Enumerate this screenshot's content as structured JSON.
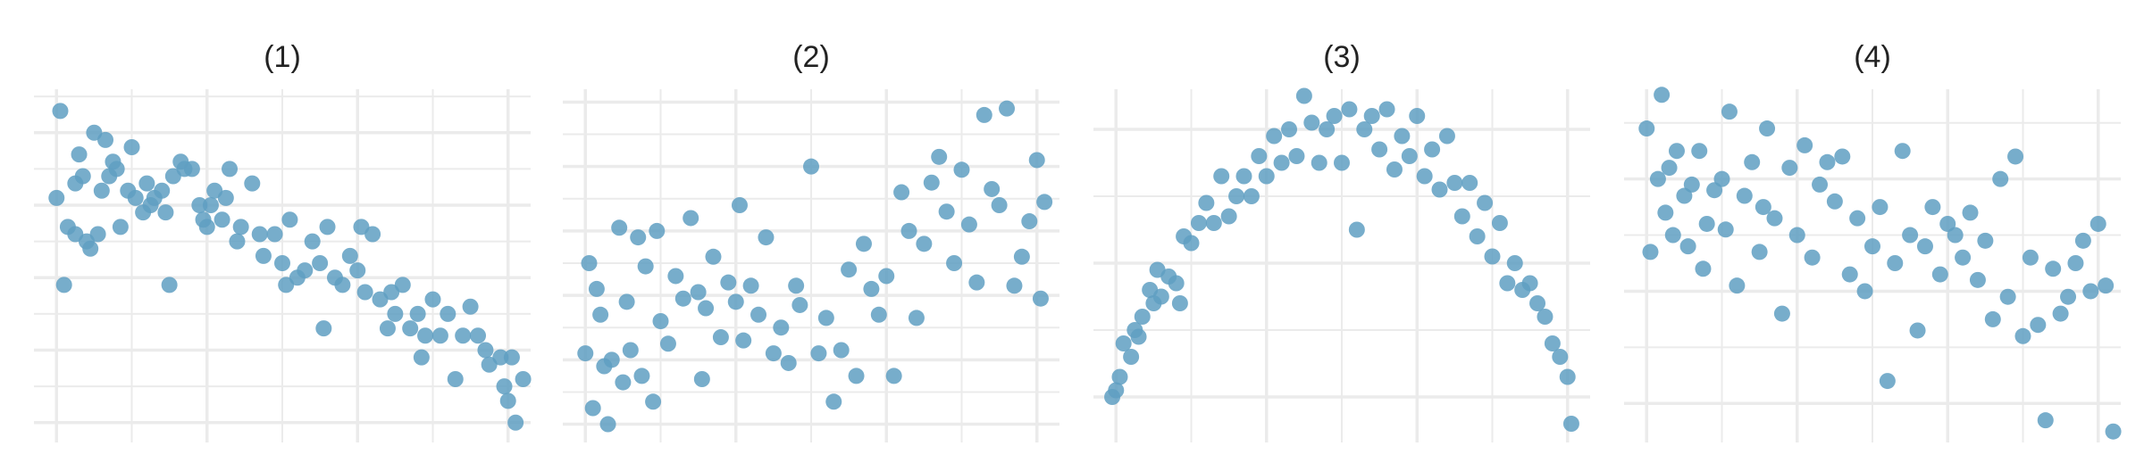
{
  "chart_data": [
    {
      "type": "scatter",
      "title": "(1)",
      "color": "#5f9fc2",
      "grid": true,
      "xlim": [
        -0.3,
        6.3
      ],
      "ylim": [
        -0.2,
        4.6
      ],
      "xticks": [
        0,
        1,
        2,
        3,
        4,
        5,
        6
      ],
      "yticks": [
        0,
        0.5,
        1,
        1.5,
        2,
        2.5,
        3,
        3.5,
        4,
        4.5
      ],
      "x": [
        0,
        0.05,
        0.1,
        0.15,
        0.25,
        0.25,
        0.3,
        0.35,
        0.4,
        0.45,
        0.5,
        0.55,
        0.6,
        0.65,
        0.7,
        0.75,
        0.8,
        0.85,
        0.95,
        1.0,
        1.05,
        1.15,
        1.2,
        1.25,
        1.3,
        1.4,
        1.45,
        1.5,
        1.55,
        1.65,
        1.7,
        1.8,
        1.9,
        1.95,
        2.0,
        2.05,
        2.1,
        2.2,
        2.25,
        2.3,
        2.4,
        2.45,
        2.6,
        2.7,
        2.75,
        2.9,
        3.0,
        3.05,
        3.1,
        3.2,
        3.3,
        3.4,
        3.5,
        3.55,
        3.6,
        3.7,
        3.8,
        3.9,
        4.0,
        4.05,
        4.1,
        4.2,
        4.3,
        4.4,
        4.45,
        4.5,
        4.6,
        4.7,
        4.8,
        4.85,
        4.9,
        5.0,
        5.1,
        5.2,
        5.3,
        5.4,
        5.5,
        5.6,
        5.7,
        5.75,
        5.9,
        5.95,
        6.0,
        6.05,
        6.1,
        6.2
      ],
      "values": [
        3.1,
        4.3,
        1.9,
        2.7,
        2.6,
        3.3,
        3.7,
        3.4,
        2.5,
        2.4,
        4.0,
        2.6,
        3.2,
        3.9,
        3.4,
        3.6,
        3.5,
        2.7,
        3.2,
        3.8,
        3.1,
        2.9,
        3.3,
        3.0,
        3.1,
        3.2,
        2.9,
        1.9,
        3.4,
        3.6,
        3.5,
        3.5,
        3.0,
        2.8,
        2.7,
        3.0,
        3.2,
        2.8,
        3.1,
        3.5,
        2.5,
        2.7,
        3.3,
        2.6,
        2.3,
        2.6,
        2.2,
        1.9,
        2.8,
        2.0,
        2.1,
        2.5,
        2.2,
        1.3,
        2.7,
        2.0,
        1.9,
        2.3,
        2.1,
        2.7,
        1.8,
        2.6,
        1.7,
        1.3,
        1.8,
        1.5,
        1.9,
        1.3,
        1.5,
        0.9,
        1.2,
        1.7,
        1.2,
        1.5,
        0.6,
        1.2,
        1.6,
        1.2,
        1.0,
        0.8,
        0.9,
        0.5,
        0.3,
        0.9,
        0.0,
        0.6
      ]
    },
    {
      "type": "scatter",
      "title": "(2)",
      "color": "#5f9fc2",
      "grid": true,
      "xlim": [
        -0.3,
        6.3
      ],
      "ylim": [
        -0.4,
        10.4
      ],
      "xticks": [
        0,
        1,
        2,
        3,
        4,
        5,
        6
      ],
      "yticks": [
        0,
        1,
        2,
        3,
        4,
        5,
        6,
        7,
        8,
        9,
        10
      ],
      "x": [
        0,
        0.05,
        0.1,
        0.15,
        0.2,
        0.25,
        0.3,
        0.35,
        0.45,
        0.5,
        0.55,
        0.6,
        0.7,
        0.75,
        0.8,
        0.9,
        0.95,
        1.0,
        1.1,
        1.2,
        1.3,
        1.4,
        1.5,
        1.55,
        1.6,
        1.7,
        1.8,
        1.9,
        2.0,
        2.05,
        2.1,
        2.2,
        2.3,
        2.4,
        2.5,
        2.6,
        2.7,
        2.8,
        2.85,
        3.0,
        3.1,
        3.2,
        3.3,
        3.4,
        3.5,
        3.6,
        3.7,
        3.8,
        3.9,
        4.0,
        4.1,
        4.2,
        4.3,
        4.4,
        4.5,
        4.6,
        4.7,
        4.8,
        4.9,
        5.0,
        5.1,
        5.2,
        5.3,
        5.4,
        5.5,
        5.6,
        5.7,
        5.8,
        5.9,
        6.0,
        6.05,
        6.1
      ],
      "values": [
        2.2,
        5.0,
        0.5,
        4.2,
        3.4,
        1.8,
        0.0,
        2.0,
        6.1,
        1.3,
        3.8,
        2.3,
        5.8,
        1.5,
        4.9,
        0.7,
        6.0,
        3.2,
        2.5,
        4.6,
        3.9,
        6.4,
        4.1,
        1.4,
        3.6,
        5.2,
        2.7,
        4.4,
        3.8,
        6.8,
        2.6,
        4.3,
        3.4,
        5.8,
        2.2,
        3.0,
        1.9,
        4.3,
        3.7,
        8.0,
        2.2,
        3.3,
        0.7,
        2.3,
        4.8,
        1.5,
        5.6,
        4.2,
        3.4,
        4.6,
        1.5,
        7.2,
        6.0,
        3.3,
        5.6,
        7.5,
        8.3,
        6.6,
        5.0,
        7.9,
        6.2,
        4.4,
        9.6,
        7.3,
        6.8,
        9.8,
        4.3,
        5.2,
        6.3,
        8.2,
        3.9,
        6.9
      ]
    },
    {
      "type": "scatter",
      "title": "(3)",
      "color": "#5f9fc2",
      "grid": true,
      "xlim": [
        -0.3,
        6.3
      ],
      "ylim": [
        -0.6,
        4.6
      ],
      "xticks": [
        0,
        1,
        2,
        3,
        4,
        5,
        6
      ],
      "yticks": [
        0,
        1,
        2,
        3,
        4
      ],
      "x": [
        -0.05,
        0,
        0.05,
        0.1,
        0.2,
        0.25,
        0.3,
        0.35,
        0.45,
        0.5,
        0.55,
        0.6,
        0.7,
        0.8,
        0.85,
        0.9,
        1.0,
        1.1,
        1.2,
        1.3,
        1.4,
        1.5,
        1.6,
        1.7,
        1.8,
        1.9,
        2.0,
        2.1,
        2.2,
        2.3,
        2.4,
        2.5,
        2.6,
        2.7,
        2.8,
        2.9,
        3.0,
        3.1,
        3.2,
        3.3,
        3.4,
        3.5,
        3.6,
        3.7,
        3.8,
        3.9,
        4.0,
        4.1,
        4.2,
        4.3,
        4.4,
        4.5,
        4.6,
        4.7,
        4.8,
        4.9,
        5.0,
        5.1,
        5.2,
        5.3,
        5.4,
        5.5,
        5.6,
        5.7,
        5.8,
        5.9,
        6.0,
        6.05
      ],
      "values": [
        0.0,
        0.1,
        0.3,
        0.8,
        0.6,
        1.0,
        0.9,
        1.2,
        1.6,
        1.4,
        1.9,
        1.5,
        1.8,
        1.7,
        1.4,
        2.4,
        2.3,
        2.6,
        2.9,
        2.6,
        3.3,
        2.7,
        3.0,
        3.3,
        3.0,
        3.6,
        3.3,
        3.9,
        3.5,
        4.0,
        3.6,
        4.5,
        4.1,
        3.5,
        4.0,
        4.2,
        3.5,
        4.3,
        2.5,
        4.0,
        4.2,
        3.7,
        4.3,
        3.4,
        3.9,
        3.6,
        4.2,
        3.3,
        3.7,
        3.1,
        3.9,
        3.2,
        2.7,
        3.2,
        2.4,
        2.9,
        2.1,
        2.6,
        1.7,
        2.0,
        1.6,
        1.7,
        1.4,
        1.2,
        0.8,
        0.6,
        0.3,
        -0.4
      ]
    },
    {
      "type": "scatter",
      "title": "(4)",
      "color": "#5f9fc2",
      "grid": true,
      "xlim": [
        -0.3,
        6.3
      ],
      "ylim": [
        -0.6,
        5.6
      ],
      "xticks": [
        0,
        1,
        2,
        3,
        4,
        5,
        6
      ],
      "yticks": [
        0,
        1,
        2,
        3,
        4,
        5
      ],
      "x": [
        0,
        0.05,
        0.15,
        0.2,
        0.25,
        0.3,
        0.35,
        0.4,
        0.5,
        0.55,
        0.6,
        0.7,
        0.75,
        0.8,
        0.9,
        1.0,
        1.05,
        1.1,
        1.2,
        1.3,
        1.4,
        1.5,
        1.55,
        1.6,
        1.7,
        1.8,
        1.9,
        2.0,
        2.1,
        2.2,
        2.3,
        2.4,
        2.5,
        2.6,
        2.7,
        2.8,
        2.9,
        3.0,
        3.1,
        3.2,
        3.3,
        3.4,
        3.5,
        3.6,
        3.7,
        3.8,
        3.9,
        4.0,
        4.1,
        4.2,
        4.3,
        4.4,
        4.5,
        4.6,
        4.7,
        4.8,
        4.9,
        5.0,
        5.1,
        5.2,
        5.3,
        5.4,
        5.5,
        5.6,
        5.7,
        5.8,
        5.9,
        6.0,
        6.1,
        6.2
      ],
      "values": [
        4.9,
        2.7,
        4.0,
        5.5,
        3.4,
        4.2,
        3.0,
        4.5,
        3.7,
        2.8,
        3.9,
        4.5,
        2.4,
        3.2,
        3.8,
        4.0,
        3.1,
        5.2,
        2.1,
        3.7,
        4.3,
        2.7,
        3.5,
        4.9,
        3.3,
        1.6,
        4.2,
        3.0,
        4.6,
        2.6,
        3.9,
        4.3,
        3.6,
        4.4,
        2.3,
        3.3,
        2.0,
        2.8,
        3.5,
        0.4,
        2.5,
        4.5,
        3.0,
        1.3,
        2.8,
        3.5,
        2.3,
        3.2,
        3.0,
        2.6,
        3.4,
        2.2,
        2.9,
        1.5,
        4.0,
        1.9,
        4.4,
        1.2,
        2.6,
        1.4,
        -0.3,
        2.4,
        1.6,
        1.9,
        2.5,
        2.9,
        2.0,
        3.2,
        2.1,
        -0.5
      ]
    }
  ]
}
